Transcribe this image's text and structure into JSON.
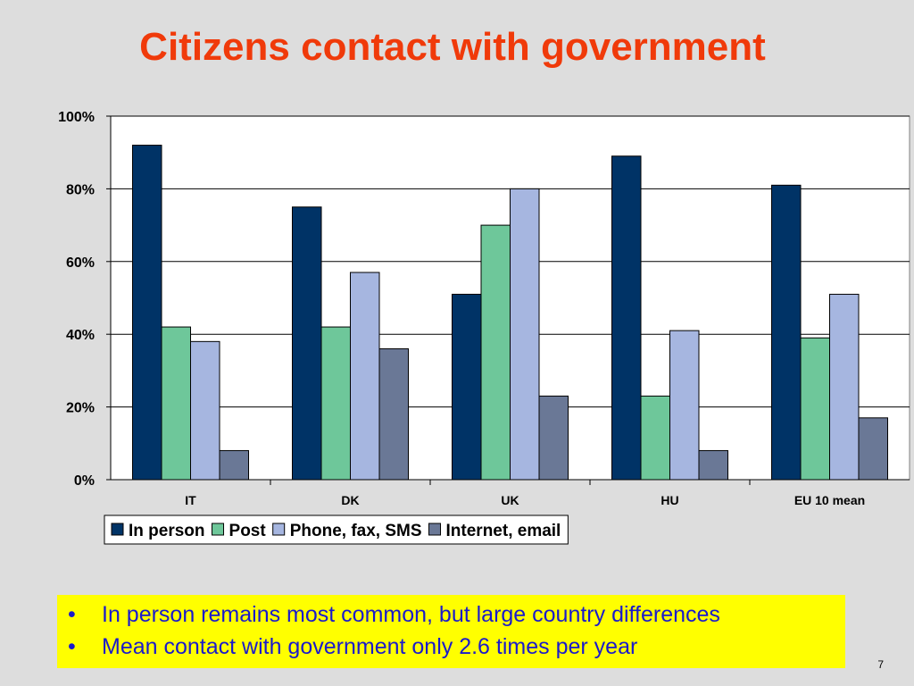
{
  "slide": {
    "title": "Citizens contact with government",
    "bullets": [
      "In person remains most common, but large country differences",
      "Mean contact with government only 2.6 times per year"
    ],
    "page_number": "7"
  },
  "chart_data": {
    "type": "bar",
    "title": "",
    "xlabel": "",
    "ylabel": "",
    "categories": [
      "IT",
      "DK",
      "UK",
      "HU",
      "EU 10 mean"
    ],
    "series": [
      {
        "name": "In person",
        "color": "#003366",
        "values": [
          92,
          75,
          51,
          89,
          81
        ]
      },
      {
        "name": "Post",
        "color": "#6ec79a",
        "values": [
          42,
          42,
          70,
          23,
          39
        ]
      },
      {
        "name": "Phone, fax, SMS",
        "color": "#a6b6e0",
        "values": [
          38,
          57,
          80,
          41,
          51
        ]
      },
      {
        "name": "Internet, email",
        "color": "#6a7896",
        "values": [
          8,
          36,
          23,
          8,
          17
        ]
      }
    ],
    "ylim": [
      0,
      100
    ],
    "yticks": [
      "0%",
      "20%",
      "40%",
      "60%",
      "80%",
      "100%"
    ],
    "grid": true,
    "legend_position": "bottom"
  }
}
